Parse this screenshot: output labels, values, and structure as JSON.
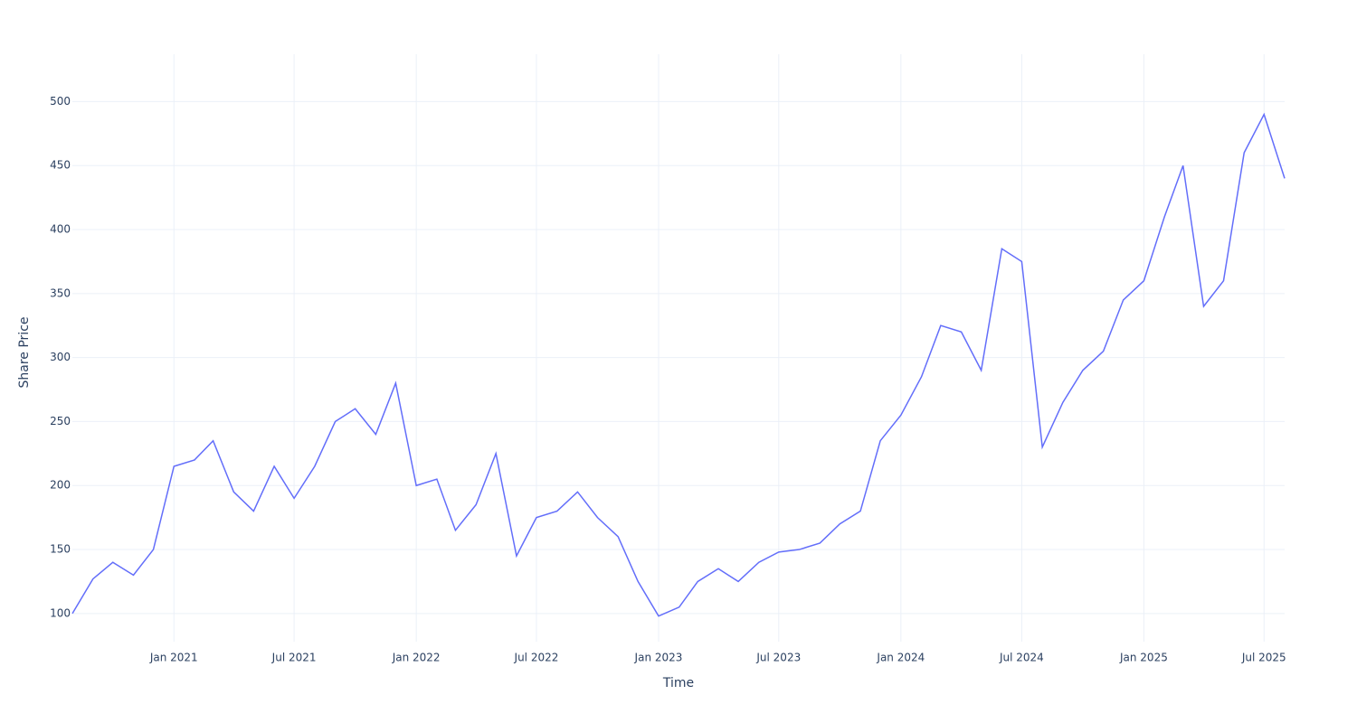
{
  "chart_data": {
    "type": "line",
    "x_label": "Time",
    "y_label": "Share Price",
    "x": [
      "2020-08",
      "2020-09",
      "2020-10",
      "2020-11",
      "2020-12",
      "2021-01",
      "2021-02",
      "2021-03",
      "2021-04",
      "2021-05",
      "2021-06",
      "2021-07",
      "2021-08",
      "2021-09",
      "2021-10",
      "2021-11",
      "2021-12",
      "2022-01",
      "2022-02",
      "2022-03",
      "2022-04",
      "2022-05",
      "2022-06",
      "2022-07",
      "2022-08",
      "2022-09",
      "2022-10",
      "2022-11",
      "2022-12",
      "2023-01",
      "2023-02",
      "2023-03",
      "2023-04",
      "2023-05",
      "2023-06",
      "2023-07",
      "2023-08",
      "2023-09",
      "2023-10",
      "2023-11",
      "2023-12",
      "2024-01",
      "2024-02",
      "2024-03",
      "2024-04",
      "2024-05",
      "2024-06",
      "2024-07",
      "2024-08",
      "2024-09",
      "2024-10",
      "2024-11",
      "2024-12",
      "2025-01",
      "2025-02",
      "2025-03",
      "2025-04",
      "2025-05",
      "2025-06",
      "2025-07",
      "2025-08"
    ],
    "values": [
      100,
      127,
      140,
      130,
      150,
      215,
      220,
      235,
      195,
      180,
      215,
      190,
      215,
      250,
      260,
      240,
      280,
      200,
      205,
      165,
      185,
      225,
      145,
      175,
      180,
      195,
      175,
      160,
      125,
      98,
      105,
      125,
      135,
      125,
      140,
      148,
      150,
      155,
      170,
      180,
      235,
      255,
      285,
      325,
      320,
      290,
      385,
      375,
      230,
      265,
      290,
      305,
      345,
      360,
      410,
      450,
      340,
      360,
      460,
      490,
      440
    ],
    "color": "#636efa",
    "xlim": [
      "2020-08",
      "2025-08"
    ],
    "xticks": [
      {
        "value": "2021-01",
        "label": "Jan 2021"
      },
      {
        "value": "2021-07",
        "label": "Jul 2021"
      },
      {
        "value": "2022-01",
        "label": "Jan 2022"
      },
      {
        "value": "2022-07",
        "label": "Jul 2022"
      },
      {
        "value": "2023-01",
        "label": "Jan 2023"
      },
      {
        "value": "2023-07",
        "label": "Jul 2023"
      },
      {
        "value": "2024-01",
        "label": "Jan 2024"
      },
      {
        "value": "2024-07",
        "label": "Jul 2024"
      },
      {
        "value": "2025-01",
        "label": "Jan 2025"
      },
      {
        "value": "2025-07",
        "label": "Jul 2025"
      }
    ],
    "ylim": [
      78,
      537
    ],
    "yticks": [
      100,
      150,
      200,
      250,
      300,
      350,
      400,
      450,
      500
    ],
    "grid": true
  }
}
